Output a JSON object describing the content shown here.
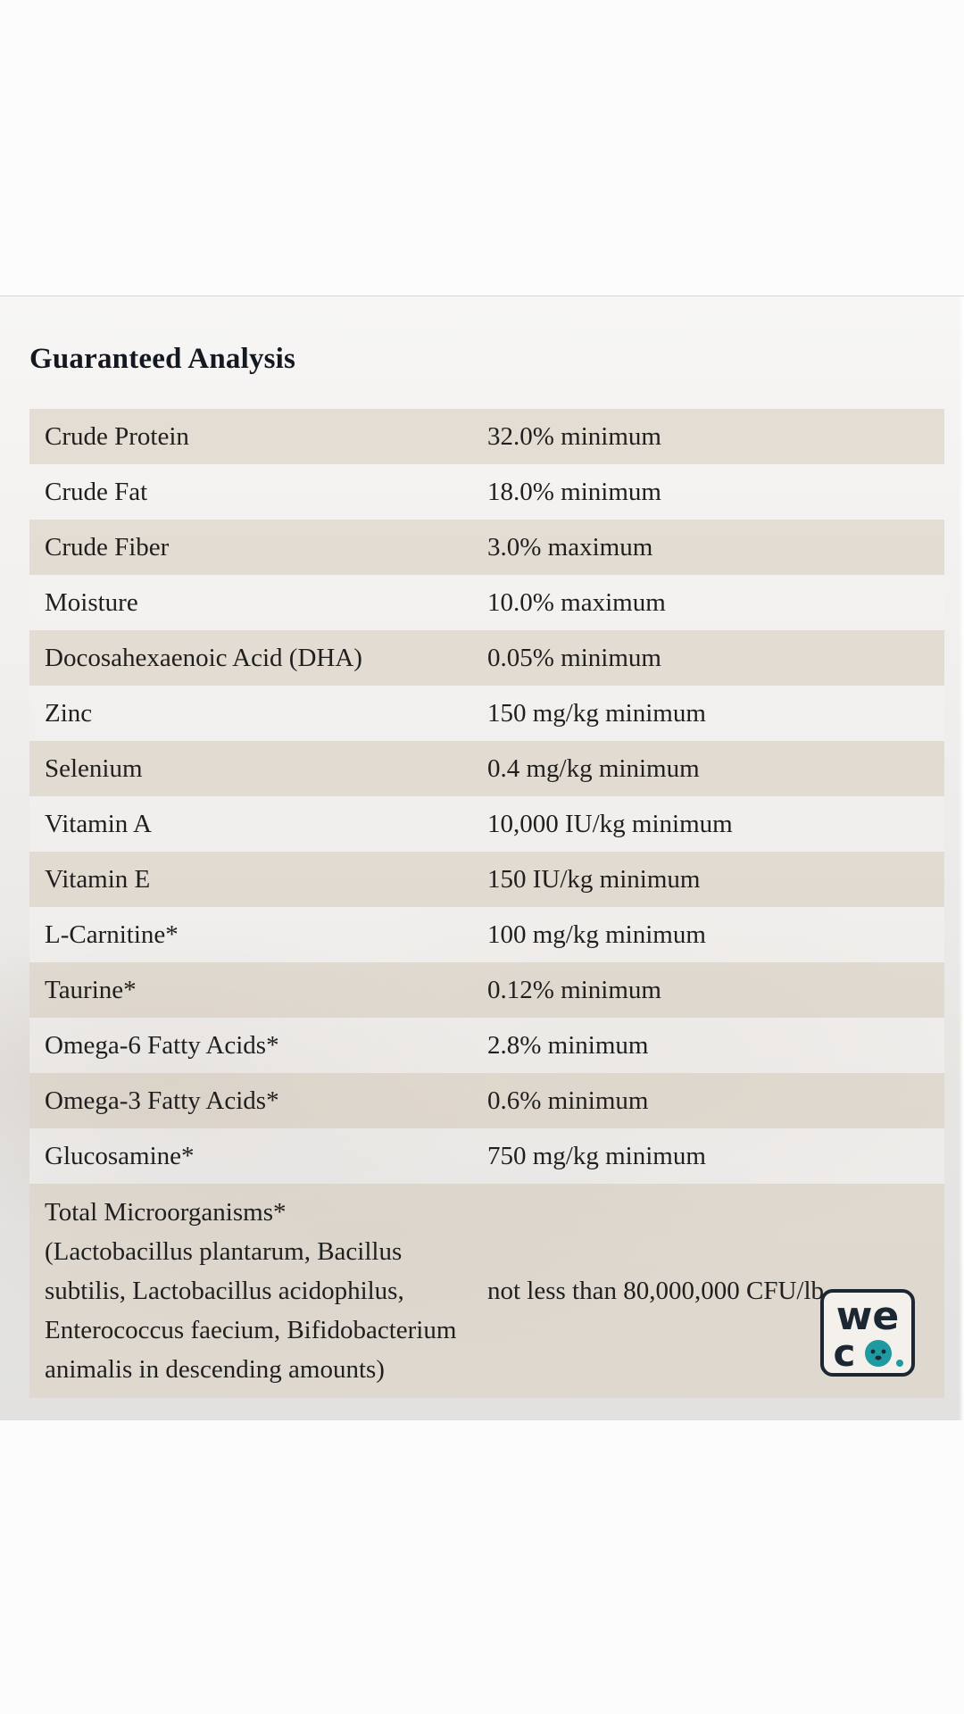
{
  "title": "Guaranteed Analysis",
  "rows": [
    {
      "name": "Crude Protein",
      "value": "32.0% minimum"
    },
    {
      "name": "Crude Fat",
      "value": "18.0% minimum"
    },
    {
      "name": "Crude Fiber",
      "value": "3.0% maximum"
    },
    {
      "name": "Moisture",
      "value": "10.0% maximum"
    },
    {
      "name": "Docosahexaenoic Acid (DHA)",
      "value": "0.05% minimum"
    },
    {
      "name": "Zinc",
      "value": "150 mg/kg minimum"
    },
    {
      "name": "Selenium",
      "value": "0.4 mg/kg minimum"
    },
    {
      "name": "Vitamin A",
      "value": "10,000 IU/kg minimum"
    },
    {
      "name": "Vitamin E",
      "value": "150 IU/kg minimum"
    },
    {
      "name": "L-Carnitine*",
      "value": "100 mg/kg minimum"
    },
    {
      "name": "Taurine*",
      "value": "0.12% minimum"
    },
    {
      "name": "Omega-6 Fatty Acids*",
      "value": "2.8% minimum"
    },
    {
      "name": "Omega-3 Fatty Acids*",
      "value": "0.6% minimum"
    },
    {
      "name": "Glucosamine*",
      "value": "750 mg/kg minimum"
    }
  ],
  "microorganisms": {
    "name_lines": [
      "Total Microorganisms*",
      "(Lactobacillus plantarum, Bacillus",
      "subtilis, Lactobacillus acidophilus,",
      "Enterococcus faecium, Bifidobacterium",
      "animalis in descending amounts)"
    ],
    "value": "not less than 80,000,000 CFU/lb"
  },
  "logo": {
    "line1": "we",
    "line2": "co",
    "dot": ".",
    "colors": {
      "frame": "#1b2733",
      "accent": "#1f9aa0"
    }
  }
}
